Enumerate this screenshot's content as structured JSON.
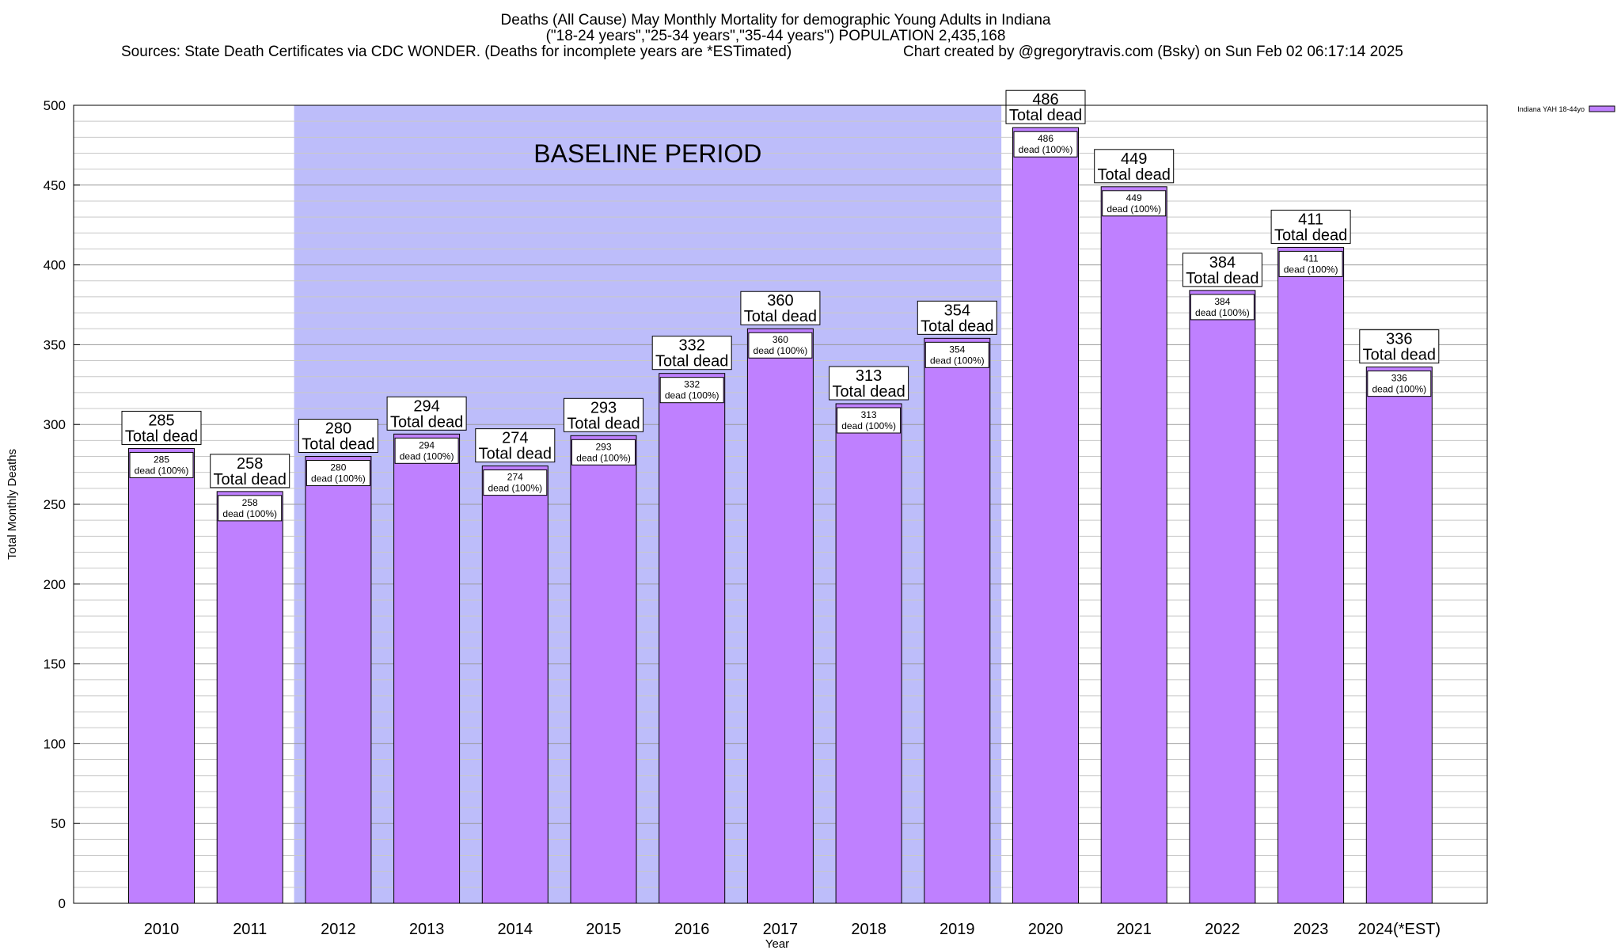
{
  "chart_data": {
    "type": "bar",
    "title_lines": [
      "Deaths (All Cause) May Monthly Mortality for demographic Young Adults in Indiana",
      "(\"18-24 years\",\"25-34 years\",\"35-44 years\") POPULATION 2,435,168"
    ],
    "sources": "Sources: State Death Certificates via CDC WONDER. (Deaths for incomplete years are *ESTimated)",
    "credit": "Chart created by @gregorytravis.com (Bsky) on Sun Feb 02 06:17:14 2025",
    "xlabel": "Year",
    "ylabel": "Total Monthly Deaths",
    "ylim": [
      0,
      500
    ],
    "yticks": [
      0,
      50,
      100,
      150,
      200,
      250,
      300,
      350,
      400,
      450,
      500
    ],
    "grid": true,
    "legend_position": "top-right",
    "categories": [
      "2010",
      "2011",
      "2012",
      "2013",
      "2014",
      "2015",
      "2016",
      "2017",
      "2018",
      "2019",
      "2020",
      "2021",
      "2022",
      "2023",
      "2024(*EST)"
    ],
    "series": [
      {
        "name": "Indiana YAH 18-44yo",
        "color": "#bf80ff",
        "values": [
          285,
          258,
          280,
          294,
          274,
          293,
          332,
          360,
          313,
          354,
          486,
          449,
          384,
          411,
          336
        ]
      }
    ],
    "label_total_text": "Total dead",
    "label_inner_text": "dead (100%)",
    "baseline": {
      "label": "BASELINE PERIOD",
      "start": "2012",
      "end": "2019",
      "color": "#bdbdfa"
    }
  }
}
